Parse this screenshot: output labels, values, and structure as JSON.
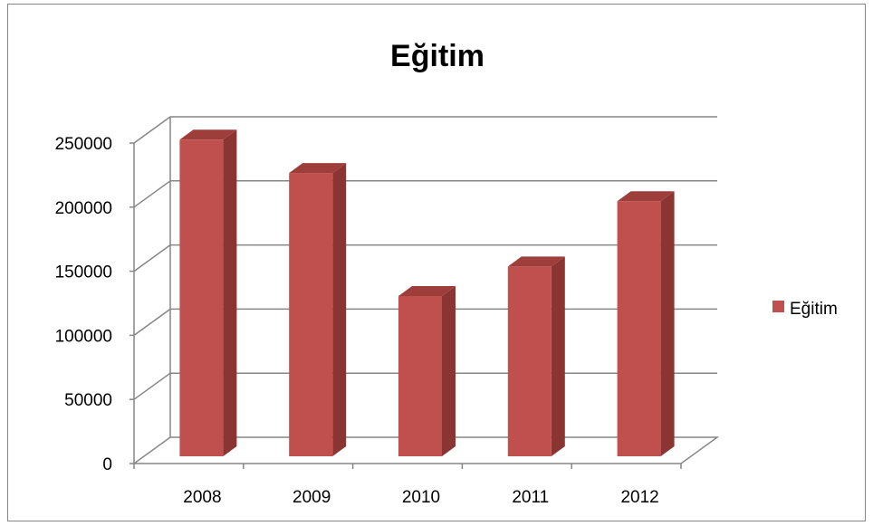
{
  "chart_data": {
    "type": "bar",
    "title": "Eğitim",
    "categories": [
      "2008",
      "2009",
      "2010",
      "2011",
      "2012"
    ],
    "series": [
      {
        "name": "Eğitim",
        "values": [
          247000,
          221000,
          125000,
          148000,
          199000
        ]
      }
    ],
    "yticks": [
      "0",
      "50000",
      "100000",
      "150000",
      "200000",
      "250000"
    ],
    "ylim": [
      0,
      250000
    ],
    "grid": true,
    "legend": "right",
    "colors": {
      "bar_front": "#C0504D",
      "bar_side": "#8B3533",
      "bar_top": "#9E3E3B",
      "gridline": "#868686"
    }
  }
}
